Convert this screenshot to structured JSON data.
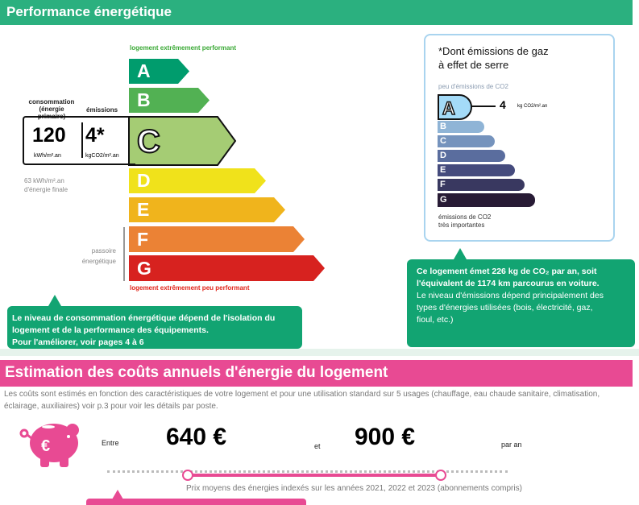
{
  "performance": {
    "title": "Performance énergétique",
    "top_label": "logement extrêmement performant",
    "bottom_label": "logement extrêmement peu performant",
    "classes": [
      {
        "letter": "A",
        "color": "#009c6d"
      },
      {
        "letter": "B",
        "color": "#52b153"
      },
      {
        "letter": "C",
        "color": "#a5cc74"
      },
      {
        "letter": "D",
        "color": "#f0e21b"
      },
      {
        "letter": "E",
        "color": "#f0b41c"
      },
      {
        "letter": "F",
        "color": "#eb8235"
      },
      {
        "letter": "G",
        "color": "#d7221f"
      }
    ],
    "current_class": "C",
    "consumption_label_1": "consommation",
    "consumption_label_2": "(énergie primaire)",
    "emissions_label": "émissions",
    "consumption_value": "120",
    "consumption_unit": "kWh/m².an",
    "emissions_value": "4*",
    "emissions_unit": "kgCO2/m².an",
    "final_energy_1": "63 kWh/m².an",
    "final_energy_2": "d'énergie finale",
    "passoire_1": "passoire",
    "passoire_2": "énergétique",
    "callout_lines": [
      "Le niveau de consommation énergétique dépend de l'isolation du",
      "logement et de la performance des équipements.",
      "Pour l'améliorer, voir pages 4 à 6"
    ]
  },
  "ges": {
    "title_1": "*Dont émissions de gaz",
    "title_2": "à effet de serre",
    "top_label": "peu d'émissions de CO2",
    "bottom_label_1": "émissions de CO2",
    "bottom_label_2": "très importantes",
    "current_class": "A",
    "value": "4",
    "unit": "kg CO2/m².an",
    "classes": [
      {
        "letter": "A",
        "color": "#a4dbf8"
      },
      {
        "letter": "B",
        "color": "#8fb4d6"
      },
      {
        "letter": "C",
        "color": "#7593bd"
      },
      {
        "letter": "D",
        "color": "#5a6d9e"
      },
      {
        "letter": "E",
        "color": "#454b7d"
      },
      {
        "letter": "F",
        "color": "#393860"
      },
      {
        "letter": "G",
        "color": "#281b35"
      }
    ],
    "callout_lines": [
      "Ce logement émet 226 kg de CO₂ par an, soit",
      "l'équivalent de 1174  km parcourus en voiture.",
      "Le niveau d'émissions dépend principalement des",
      "types d'énergies utilisées (bois, électricité, gaz,",
      "fioul, etc.)"
    ]
  },
  "costs": {
    "title": "Estimation des coûts annuels d'énergie du logement",
    "description": "Les coûts sont estimés en fonction des caractéristiques de votre logement et pour une utilisation standard sur 5 usages (chauffage, eau chaude sanitaire, climatisation, éclairage, auxiliaires) voir p.3 pour voir les détails par poste.",
    "between": "Entre",
    "min": "640 €",
    "and": "et",
    "max": "900 €",
    "per_year": "par an",
    "note": "Prix moyens des énergies indexés sur les années 2021, 2022 et 2023 (abonnements compris)",
    "accent": "#e84a93"
  }
}
